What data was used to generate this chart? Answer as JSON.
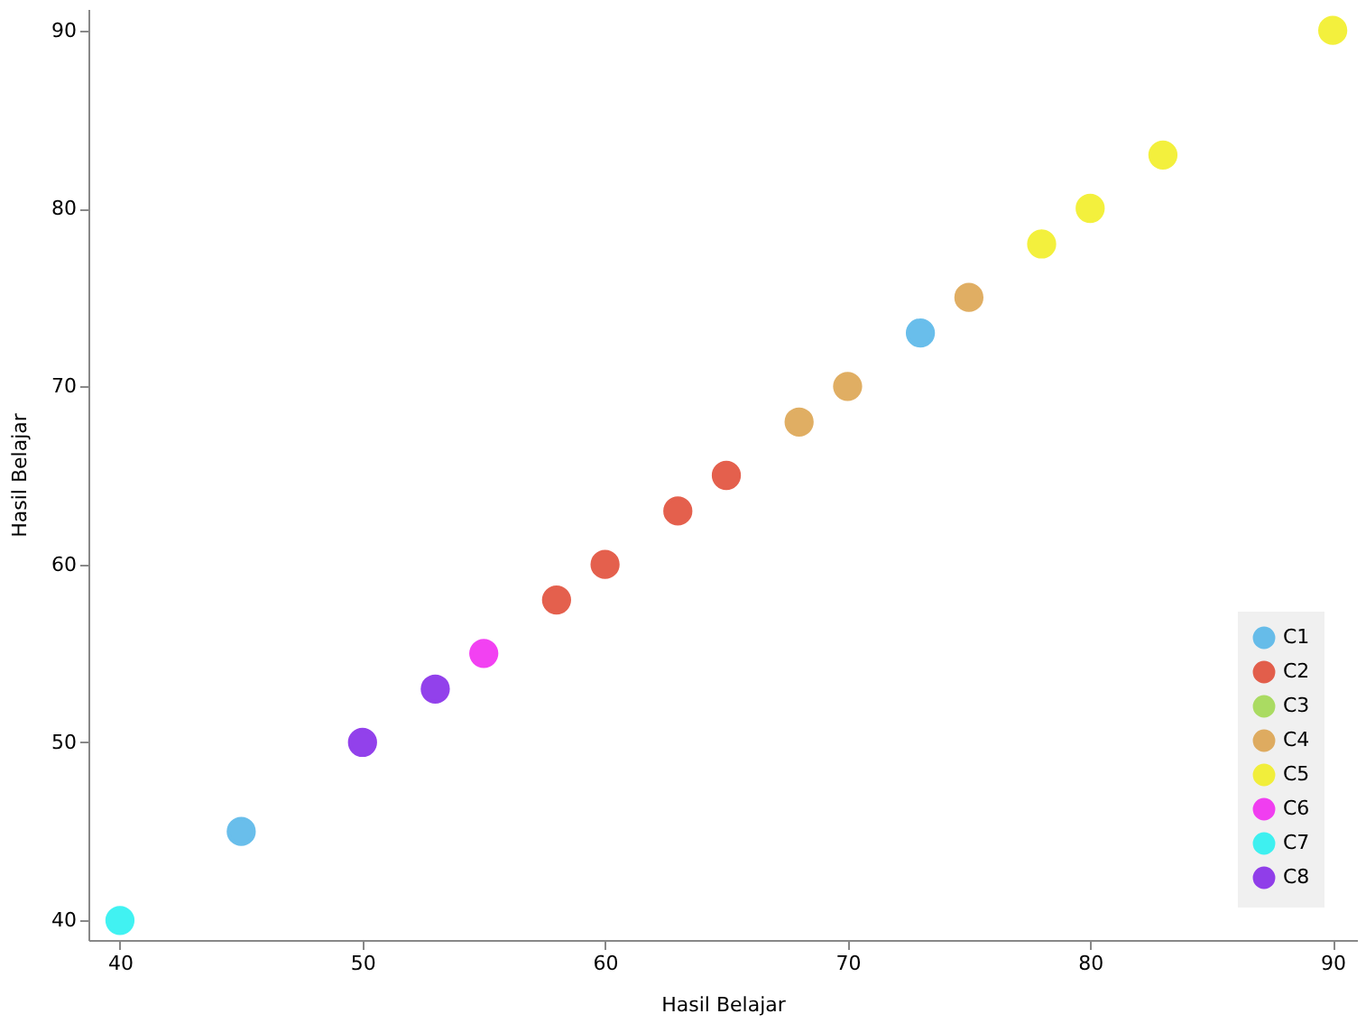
{
  "chart_data": {
    "type": "scatter",
    "xlabel": "Hasil Belajar",
    "ylabel": "Hasil Belajar",
    "xlim": [
      38.7,
      91
    ],
    "ylim": [
      38.9,
      91.2
    ],
    "xticks": [
      40,
      50,
      60,
      70,
      80,
      90
    ],
    "yticks": [
      40,
      50,
      60,
      70,
      80,
      90
    ],
    "grid": false,
    "legend": "bottom right",
    "marker": "circle",
    "series": [
      {
        "name": "C1",
        "color": "#4fb3e8",
        "x": [
          45,
          73
        ],
        "values": [
          45,
          73
        ]
      },
      {
        "name": "C2",
        "color": "#e0452f",
        "x": [
          58,
          60,
          63,
          65
        ],
        "values": [
          58,
          60,
          63,
          65
        ]
      },
      {
        "name": "C3",
        "color": "#9ed84a"
      },
      {
        "name": "C4",
        "color": "#dba048",
        "x": [
          68,
          70,
          75
        ],
        "values": [
          68,
          70,
          75
        ]
      },
      {
        "name": "C5",
        "color": "#f2ee1c",
        "x": [
          78,
          80,
          83,
          90
        ],
        "values": [
          78,
          80,
          83,
          90
        ]
      },
      {
        "name": "C6",
        "color": "#f020f0",
        "x": [
          55
        ],
        "values": [
          55
        ]
      },
      {
        "name": "C7",
        "color": "#20f0f0",
        "x": [
          40
        ],
        "values": [
          40
        ]
      },
      {
        "name": "C8",
        "color": "#8020e8",
        "x": [
          50,
          53
        ],
        "values": [
          50,
          53
        ]
      }
    ]
  }
}
